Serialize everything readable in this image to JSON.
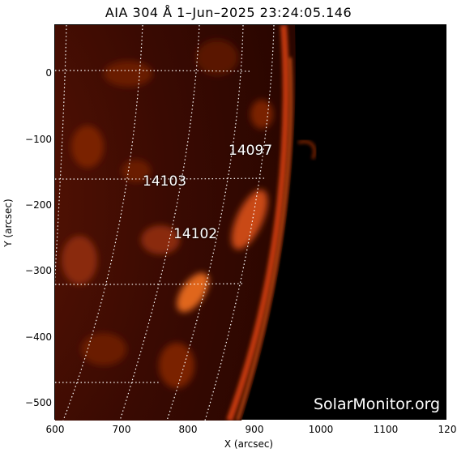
{
  "title": "AIA  304  Å   1–Jun–2025  23:24:05.146",
  "axes": {
    "xlabel": "X (arcsec)",
    "ylabel": "Y (arcsec)",
    "xticks": [
      "600",
      "700",
      "800",
      "900",
      "1000",
      "1100",
      "120"
    ],
    "yticks": [
      "0",
      "−100",
      "−200",
      "−300",
      "−400",
      "−500"
    ]
  },
  "regions": [
    {
      "label": "14097"
    },
    {
      "label": "14103"
    },
    {
      "label": "14102"
    }
  ],
  "watermark": "SolarMonitor.org",
  "colors": {
    "chromosphere": "#e04a10",
    "background": "#000000",
    "grid": "#ffffff"
  }
}
